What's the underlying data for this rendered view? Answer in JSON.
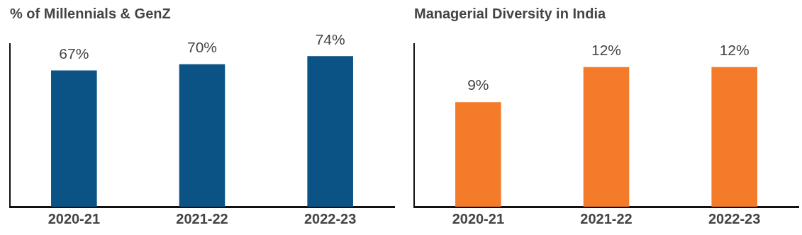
{
  "chart_data": [
    {
      "type": "bar",
      "title": "% of Millennials & GenZ",
      "categories": [
        "2020-21",
        "2021-22",
        "2022-23"
      ],
      "values": [
        67,
        70,
        74
      ],
      "color": "#0b5384",
      "value_labels": [
        "67%",
        "70%",
        "74%"
      ],
      "tick_labels": "x",
      "grid": false,
      "legend": false
    },
    {
      "type": "bar",
      "title": "Managerial Diversity in India",
      "categories": [
        "2020-21",
        "2021-22",
        "2022-23"
      ],
      "values": [
        9,
        12,
        12
      ],
      "color": "#f47b2a",
      "value_labels": [
        "9%",
        "12%",
        "12%"
      ],
      "tick_labels": "x",
      "grid": false,
      "legend": false
    }
  ]
}
